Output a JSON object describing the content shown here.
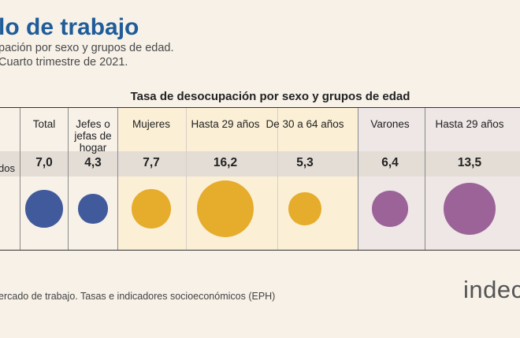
{
  "header": {
    "title": "lo de trabajo",
    "subtitle": "pación por sexo y grupos de edad.",
    "period": "Cuarto trimestre de 2021."
  },
  "row_label": "dos",
  "footer": {
    "source": "ercado de trabajo. Tasas e indicadores socioeconómicos (EPH)",
    "logo_text": "indec"
  },
  "colors": {
    "total": "#405a9c",
    "mujeres": "#e6ac2b",
    "varones": "#9b6398"
  },
  "chart_data": {
    "type": "bubble",
    "title": "Tasa de desocupación por sexo y grupos de edad",
    "categories": [
      "Total",
      "Jefes o jefas de hogar",
      "Mujeres",
      "Hasta 29 años",
      "De 30 a 64 años",
      "Varones",
      "Hasta 29 años"
    ],
    "labels": [
      "7,0",
      "4,3",
      "7,7",
      "16,2",
      "5,3",
      "6,4",
      "13,5"
    ],
    "values": [
      7.0,
      4.3,
      7.7,
      16.2,
      5.3,
      6.4,
      13.5
    ],
    "groups": [
      "total",
      "total",
      "mujeres",
      "mujeres",
      "mujeres",
      "varones",
      "varones"
    ]
  }
}
